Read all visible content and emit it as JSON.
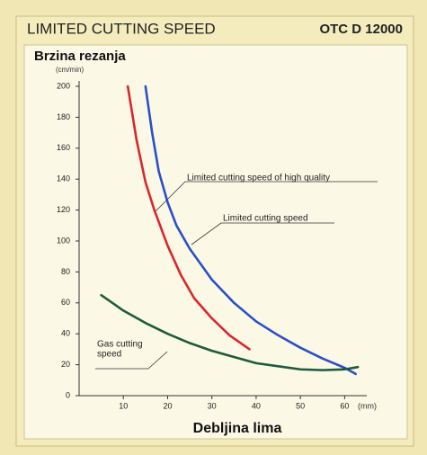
{
  "chart_data": {
    "type": "line",
    "title": "LIMITED CUTTING SPEED",
    "subtitle": "OTC D 12000",
    "y_label": "Brzina rezanja",
    "y_unit": "(cm/min)",
    "x_label": "Debljina lima",
    "x_unit": "(mm)",
    "xlim": [
      0,
      65
    ],
    "ylim": [
      0,
      200
    ],
    "xticks": [
      10,
      20,
      30,
      40,
      50,
      60
    ],
    "yticks": [
      0,
      20,
      40,
      60,
      80,
      100,
      120,
      140,
      160,
      180,
      200
    ],
    "grid": false,
    "series": [
      {
        "name": "Limited cutting speed of high quality",
        "color": "#d8272d",
        "x": [
          11,
          13,
          15,
          17,
          20,
          23,
          26,
          30,
          34,
          38.5
        ],
        "values": [
          200,
          165,
          138,
          120,
          97,
          78,
          63,
          50,
          39,
          30
        ]
      },
      {
        "name": "Limited cutting speed",
        "color": "#2a4fc8",
        "x": [
          15,
          16.5,
          18,
          20,
          22,
          25,
          30,
          35,
          40,
          45,
          50,
          55,
          60,
          62.5
        ],
        "values": [
          200,
          170,
          145,
          125,
          110,
          95,
          75,
          60,
          48,
          39,
          31,
          24,
          18,
          14
        ]
      },
      {
        "name": [
          "Gas cutting",
          "speed"
        ],
        "color": "#1e5b3c",
        "x": [
          5,
          10,
          15,
          20,
          25,
          30,
          35,
          40,
          45,
          50,
          55,
          60,
          63
        ],
        "values": [
          65,
          55,
          47,
          40,
          34,
          29,
          25,
          21,
          19,
          17,
          16.5,
          17,
          18.5
        ]
      }
    ]
  }
}
